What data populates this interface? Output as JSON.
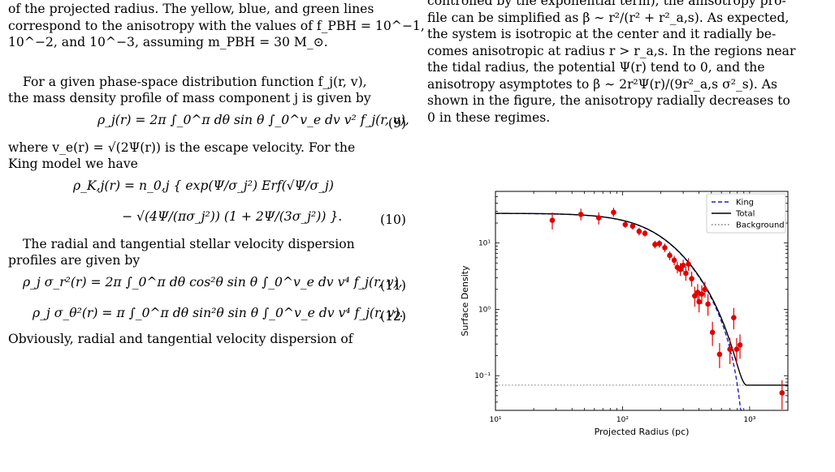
{
  "left": {
    "caption_lines": [
      "of the projected radius.  The yellow, blue, and green lines",
      "correspond to the anisotropy with the values of f_PBH = 10^−1,",
      "10^−2, and 10^−3, assuming m_PBH = 30 M_⊙."
    ],
    "para1": [
      "For a given phase-space distribution function f_j(r, v),",
      "the mass density profile of mass component j is given by"
    ],
    "eq9": {
      "body": "ρ_j(r) = 2π ∫_0^π dθ sin θ ∫_0^v_e dv v² f_j(r, v),",
      "num": "(9)"
    },
    "para2": [
      "where v_e(r) = √(2Ψ(r)) is the escape velocity.  For the",
      "King model we have"
    ],
    "eq10a": "ρ_K,j(r) = n_0,j { exp(Ψ/σ_j²) Erf(√Ψ/σ_j)",
    "eq10b": "− √(4Ψ/(πσ_j²)) (1 + 2Ψ/(3σ_j²)) }.",
    "eq10_num": "(10)",
    "para3": [
      "The radial and tangential stellar velocity dispersion",
      "profiles are given by"
    ],
    "eq11": {
      "body": "ρ_j σ_r²(r) = 2π ∫_0^π dθ cos²θ sin θ ∫_0^v_e dv v⁴ f_j(r, v),",
      "num": "(11)"
    },
    "eq12": {
      "body": "ρ_j σ_θ²(r) = π ∫_0^π dθ sin²θ sin θ ∫_0^v_e dv v⁴ f_j(r, v).",
      "num": "(12)"
    },
    "tail": "Obviously, radial and tangential velocity dispersion of"
  },
  "right": {
    "lines": [
      "controlled by the exponential term), the anisotropy pro-",
      "file can be simplified as β ∼ r²/(r² + r²_a,s).  As expected,",
      "the system is isotropic at the center and it radially be-",
      "comes anisotropic at radius r > r_a,s.  In the regions near",
      "the tidal radius, the potential Ψ(r) tend to 0, and the",
      "anisotropy asymptotes to β ∼ 2r²Ψ(r)/(9r²_a,s σ²_s).   As",
      "shown in the figure, the anisotropy radially decreases to",
      "0 in these regimes."
    ]
  },
  "chart_data": {
    "type": "scatter",
    "title": "",
    "xlabel": "Projected Radius (pc)",
    "ylabel": "Surface Density",
    "xscale": "log",
    "yscale": "log",
    "xlim": [
      10,
      2000
    ],
    "ylim": [
      0.03,
      60
    ],
    "x_tick_labels": [
      "10¹",
      "10²",
      "10³"
    ],
    "y_tick_labels": [
      "10⁻¹",
      "10⁰",
      "10¹"
    ],
    "legend": {
      "placement": "top-right",
      "entries": [
        "King",
        "Total",
        "Background"
      ]
    },
    "colors": {
      "king": "#1f1fcc",
      "total": "#000000",
      "background": "#777777",
      "points": "#e00000"
    },
    "background_level": 0.072,
    "model_params": {
      "core_density": 28,
      "core_radius_pc": 220,
      "tidal_radius_pc": 950
    },
    "series": [
      {
        "name": "data",
        "points": [
          {
            "x": 28,
            "y": 22,
            "lo": 16,
            "hi": 29
          },
          {
            "x": 47,
            "y": 27,
            "lo": 22,
            "hi": 33
          },
          {
            "x": 65,
            "y": 24,
            "lo": 19,
            "hi": 29
          },
          {
            "x": 85,
            "y": 29,
            "lo": 25,
            "hi": 34
          },
          {
            "x": 105,
            "y": 19,
            "lo": 17,
            "hi": 21
          },
          {
            "x": 120,
            "y": 18,
            "lo": 16,
            "hi": 20
          },
          {
            "x": 135,
            "y": 15,
            "lo": 13,
            "hi": 17
          },
          {
            "x": 150,
            "y": 14,
            "lo": 12.5,
            "hi": 15.5
          },
          {
            "x": 180,
            "y": 9.5,
            "lo": 8.3,
            "hi": 10.8
          },
          {
            "x": 195,
            "y": 9.8,
            "lo": 8.5,
            "hi": 11
          },
          {
            "x": 215,
            "y": 8.5,
            "lo": 7.3,
            "hi": 9.8
          },
          {
            "x": 235,
            "y": 6.5,
            "lo": 5.5,
            "hi": 7.5
          },
          {
            "x": 255,
            "y": 5.5,
            "lo": 4.6,
            "hi": 6.4
          },
          {
            "x": 270,
            "y": 4.3,
            "lo": 3.5,
            "hi": 5.2
          },
          {
            "x": 285,
            "y": 4.0,
            "lo": 3.2,
            "hi": 5.0
          },
          {
            "x": 300,
            "y": 4.6,
            "lo": 3.7,
            "hi": 5.6
          },
          {
            "x": 315,
            "y": 3.5,
            "lo": 2.7,
            "hi": 4.4
          },
          {
            "x": 330,
            "y": 4.8,
            "lo": 3.8,
            "hi": 5.9
          },
          {
            "x": 350,
            "y": 2.9,
            "lo": 2.2,
            "hi": 3.7
          },
          {
            "x": 370,
            "y": 1.6,
            "lo": 1.1,
            "hi": 2.2
          },
          {
            "x": 390,
            "y": 1.8,
            "lo": 1.3,
            "hi": 2.4
          },
          {
            "x": 400,
            "y": 1.3,
            "lo": 0.9,
            "hi": 1.8
          },
          {
            "x": 420,
            "y": 1.7,
            "lo": 1.2,
            "hi": 2.3
          },
          {
            "x": 445,
            "y": 2.0,
            "lo": 1.5,
            "hi": 2.6
          },
          {
            "x": 470,
            "y": 1.2,
            "lo": 0.8,
            "hi": 1.7
          },
          {
            "x": 510,
            "y": 0.45,
            "lo": 0.28,
            "hi": 0.65
          },
          {
            "x": 580,
            "y": 0.21,
            "lo": 0.13,
            "hi": 0.31
          },
          {
            "x": 700,
            "y": 0.25,
            "lo": 0.15,
            "hi": 0.37
          },
          {
            "x": 750,
            "y": 0.75,
            "lo": 0.5,
            "hi": 1.05
          },
          {
            "x": 790,
            "y": 0.25,
            "lo": 0.15,
            "hi": 0.37
          },
          {
            "x": 840,
            "y": 0.29,
            "lo": 0.18,
            "hi": 0.42
          },
          {
            "x": 1800,
            "y": 0.055,
            "lo": 0.031,
            "hi": 0.085
          }
        ]
      }
    ]
  }
}
